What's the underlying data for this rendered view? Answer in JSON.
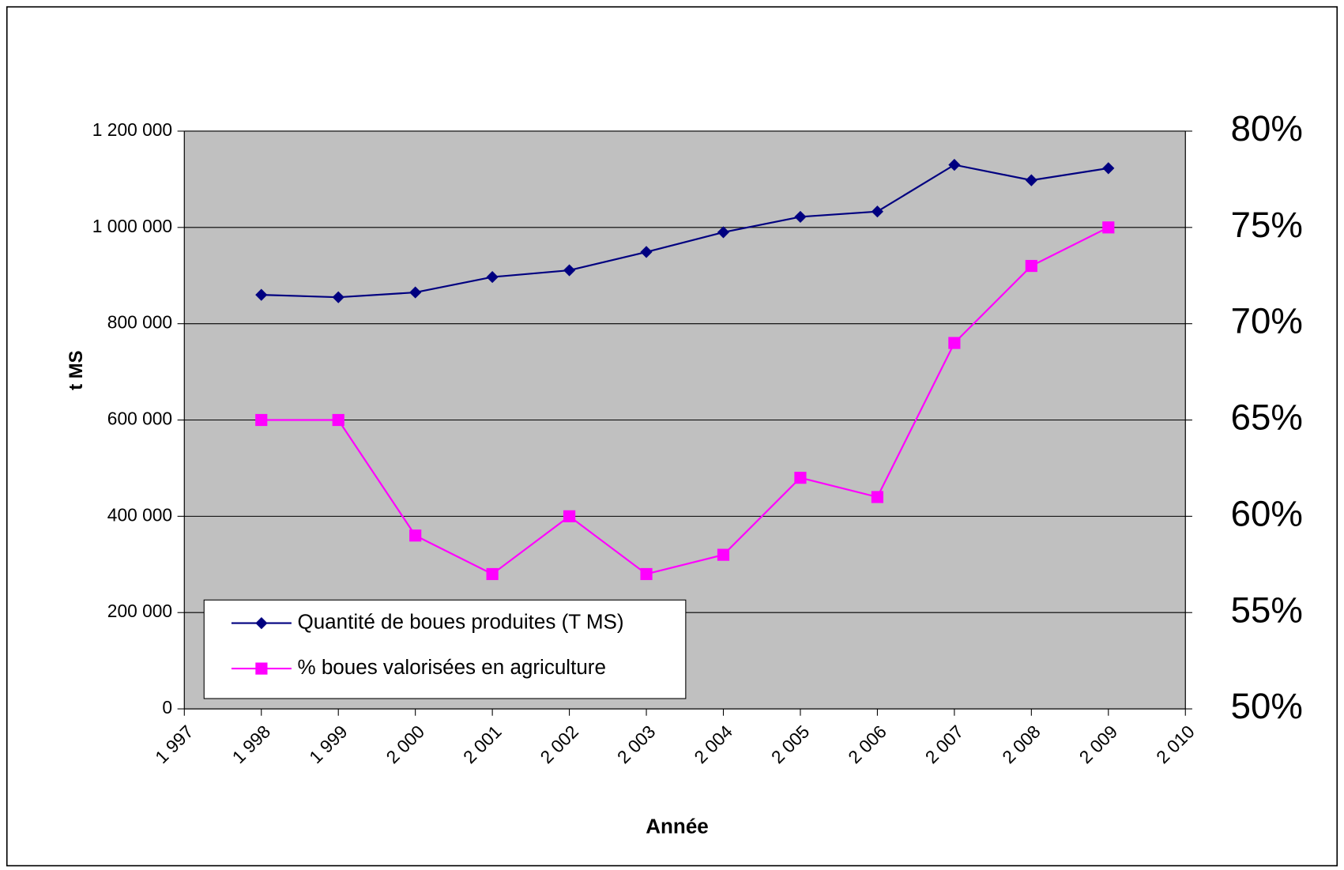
{
  "chart_data": {
    "type": "line",
    "ylabel": "t MS",
    "xlabel": "Année",
    "x": [
      1998,
      1999,
      2000,
      2001,
      2002,
      2003,
      2004,
      2005,
      2006,
      2007,
      2008,
      2009
    ],
    "series": [
      {
        "name": "Quantité de boues produites (T MS)",
        "color": "#000080",
        "marker": "diamond",
        "values": [
          860000,
          855000,
          865000,
          897000,
          911000,
          949000,
          990000,
          1022000,
          1033000,
          1130000,
          1098000,
          1123000
        ]
      },
      {
        "name": "% boues valorisées en agriculture",
        "color": "#ff00ff",
        "marker": "square",
        "axis": "y2",
        "values": [
          65,
          65,
          59,
          57,
          60,
          57,
          58,
          62,
          61,
          69,
          73,
          75
        ]
      }
    ],
    "xlim": [
      1997,
      2010
    ],
    "xticks": [
      {
        "value": 1997,
        "label": "1 997"
      },
      {
        "value": 1998,
        "label": "1 998"
      },
      {
        "value": 1999,
        "label": "1 999"
      },
      {
        "value": 2000,
        "label": "2 000"
      },
      {
        "value": 2001,
        "label": "2 001"
      },
      {
        "value": 2002,
        "label": "2 002"
      },
      {
        "value": 2003,
        "label": "2 003"
      },
      {
        "value": 2004,
        "label": "2 004"
      },
      {
        "value": 2005,
        "label": "2 005"
      },
      {
        "value": 2006,
        "label": "2 006"
      },
      {
        "value": 2007,
        "label": "2 007"
      },
      {
        "value": 2008,
        "label": "2 008"
      },
      {
        "value": 2009,
        "label": "2 009"
      },
      {
        "value": 2010,
        "label": "2 010"
      }
    ],
    "ylim": [
      0,
      1200000
    ],
    "yticks": [
      0,
      {
        "value": 200000,
        "label": "200 000"
      },
      {
        "value": 400000,
        "label": "400 000"
      },
      {
        "value": 600000,
        "label": "600 000"
      },
      {
        "value": 800000,
        "label": "800 000"
      },
      {
        "value": 1000000,
        "label": "1 000 000"
      },
      {
        "value": 1200000,
        "label": "1 200 000"
      }
    ],
    "y2lim": [
      50,
      80
    ],
    "y2ticks": [
      {
        "value": 50,
        "label": "50%"
      },
      {
        "value": 55,
        "label": "55%"
      },
      {
        "value": 60,
        "label": "60%"
      },
      {
        "value": 65,
        "label": "65%"
      },
      {
        "value": 70,
        "label": "70%"
      },
      {
        "value": 75,
        "label": "75%"
      },
      {
        "value": 80,
        "label": "80%"
      }
    ],
    "grid": true,
    "plot_background": "#c0c0c0",
    "legend": "lower left"
  }
}
